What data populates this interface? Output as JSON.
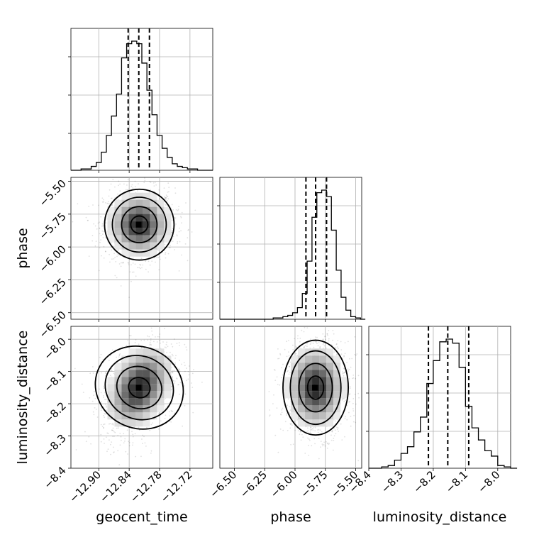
{
  "chart_data": [
    {
      "type": "histogram",
      "panel": "1d geocent_time",
      "bins": [
        -12.955,
        -12.945,
        -12.935,
        -12.925,
        -12.915,
        -12.905,
        -12.895,
        -12.885,
        -12.875,
        -12.865,
        -12.855,
        -12.845,
        -12.835,
        -12.825,
        -12.815,
        -12.805,
        -12.795,
        -12.785,
        -12.775,
        -12.765,
        -12.755,
        -12.745,
        -12.735,
        -12.725,
        -12.715,
        -12.705,
        -12.695,
        -12.685
      ],
      "values": [
        0,
        0,
        1,
        1,
        3,
        6,
        14,
        27,
        42,
        59,
        87,
        98,
        100,
        98,
        83,
        62,
        43,
        27,
        17,
        10,
        5,
        3,
        2,
        1,
        1,
        0,
        0,
        0
      ],
      "quantiles": [
        -12.842,
        -12.821,
        -12.8
      ],
      "xlim": [
        -12.955,
        -12.675
      ],
      "xticks": [
        "−12.90",
        "−12.84",
        "−12.78",
        "−12.72"
      ],
      "xtick_values": [
        -12.9,
        -12.84,
        -12.78,
        -12.72
      ],
      "xlabel": "geocent_time"
    },
    {
      "type": "histogram",
      "panel": "1d phase",
      "bins": [
        -6.62,
        -6.58,
        -6.54,
        -6.5,
        -6.46,
        -6.42,
        -6.38,
        -6.34,
        -6.3,
        -6.26,
        -6.22,
        -6.18,
        -6.14,
        -6.1,
        -6.06,
        -6.02,
        -5.98,
        -5.94,
        -5.9,
        -5.86,
        -5.82,
        -5.78,
        -5.74,
        -5.7,
        -5.66,
        -5.62,
        -5.58,
        -5.54,
        -5.5,
        -5.46
      ],
      "values": [
        0,
        0,
        0,
        0,
        0,
        0,
        0,
        0,
        0,
        0,
        0,
        1,
        1,
        2,
        3,
        5,
        9,
        20,
        45,
        79,
        98,
        100,
        95,
        69,
        38,
        17,
        7,
        2,
        1,
        0
      ],
      "quantiles": [
        -5.91,
        -5.83,
        -5.74
      ],
      "xlim": [
        -6.62,
        -5.45
      ],
      "xticks": [
        "−6.50",
        "−6.25",
        "−6.00",
        "−5.75",
        "−5.50"
      ],
      "xtick_values": [
        -6.5,
        -6.25,
        -6.0,
        -5.75,
        -5.5
      ],
      "xlabel": "phase"
    },
    {
      "type": "histogram",
      "panel": "1d luminosity_distance",
      "bins": [
        -8.4,
        -8.38,
        -8.36,
        -8.34,
        -8.32,
        -8.3,
        -8.28,
        -8.26,
        -8.24,
        -8.22,
        -8.2,
        -8.18,
        -8.16,
        -8.14,
        -8.12,
        -8.1,
        -8.08,
        -8.06,
        -8.04,
        -8.02,
        -8.0,
        -7.98,
        -7.96
      ],
      "values": [
        0,
        0,
        1,
        2,
        6,
        11,
        16,
        27,
        38,
        63,
        80,
        94,
        96,
        93,
        75,
        46,
        30,
        21,
        13,
        9,
        2,
        1,
        0
      ],
      "quantiles": [
        -8.215,
        -8.155,
        -8.09
      ],
      "xlim": [
        -8.4,
        -7.96
      ],
      "xticks": [
        "−8.4",
        "−8.3",
        "−8.2",
        "−8.1",
        "−8.0"
      ],
      "xtick_values": [
        -8.4,
        -8.3,
        -8.2,
        -8.1,
        -8.0
      ],
      "xlabel": "luminosity_distance"
    },
    {
      "type": "scatter",
      "panel": "2d geocent_time vs phase",
      "x_mean": -12.82,
      "x_sd": 0.028,
      "y_mean": -5.83,
      "y_sd": 0.11,
      "correlation": 0.0,
      "xlim": [
        -12.955,
        -12.675
      ],
      "ylim": [
        -6.55,
        -5.47
      ],
      "yticks": [
        "−5.50",
        "−5.75",
        "−6.00",
        "−6.25",
        "−6.50"
      ],
      "ytick_values": [
        -5.5,
        -5.75,
        -6.0,
        -6.25,
        -6.5
      ],
      "ylabel": "phase"
    },
    {
      "type": "scatter",
      "panel": "2d geocent_time vs luminosity_distance",
      "x_mean": -12.82,
      "x_sd": 0.03,
      "y_mean": -8.15,
      "y_sd": 0.06,
      "correlation": 0.35,
      "xlim": [
        -12.955,
        -12.675
      ],
      "ylim": [
        -8.4,
        -7.96
      ],
      "yticks": [
        "−8.0",
        "−8.1",
        "−8.2",
        "−8.3",
        "−8.4"
      ],
      "ytick_values": [
        -8.0,
        -8.1,
        -8.2,
        -8.3,
        -8.4
      ],
      "ylabel": "luminosity_distance"
    },
    {
      "type": "scatter",
      "panel": "2d phase vs luminosity_distance",
      "x_mean": -5.83,
      "x_sd": 0.11,
      "y_mean": -8.15,
      "y_sd": 0.06,
      "correlation": 0.0,
      "xlim": [
        -6.62,
        -5.45
      ],
      "ylim": [
        -8.4,
        -7.96
      ]
    }
  ],
  "labels": {
    "geocent_time": "geocent_time",
    "phase": "phase",
    "luminosity_distance": "luminosity_distance"
  }
}
